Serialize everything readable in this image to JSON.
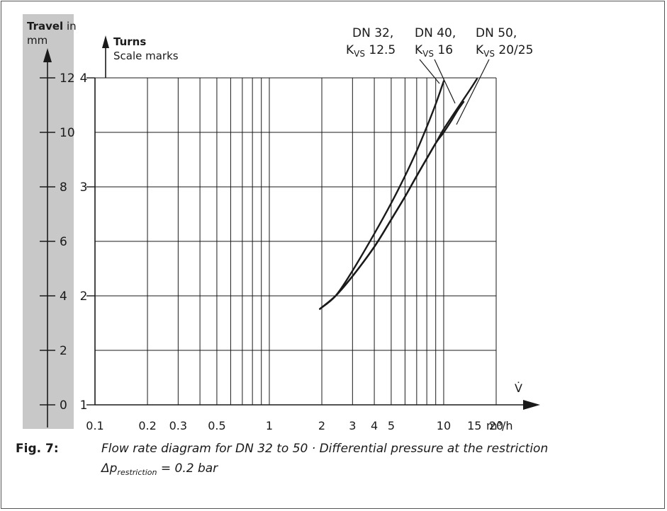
{
  "chart_data": {
    "type": "line",
    "x_scale": "log",
    "x_label": "V̇",
    "x_unit": "m³/h",
    "x_ticks": [
      0.1,
      0.2,
      0.3,
      0.5,
      1,
      2,
      3,
      4,
      5,
      10,
      15,
      20
    ],
    "x_tick_labels": [
      "0.1",
      "0.2",
      "0.3",
      "0.5",
      "1",
      "2",
      "3",
      "4",
      "5",
      "10",
      "15",
      "20"
    ],
    "x_range": [
      0.1,
      20
    ],
    "y_turns": {
      "label_bold": "Turns",
      "label": "Scale marks",
      "ticks": [
        1,
        2,
        3,
        4
      ],
      "tick_labels": [
        "1",
        "2",
        "3",
        "4"
      ],
      "range": [
        1,
        4
      ]
    },
    "y_travel": {
      "label_bold": "Travel",
      "label_rest": " in",
      "unit": "mm",
      "ticks": [
        0,
        2,
        4,
        6,
        8,
        10,
        12
      ],
      "tick_labels": [
        "0",
        "2",
        "4",
        "6",
        "8",
        "10",
        "12"
      ],
      "range": [
        0,
        12
      ]
    },
    "grid": true,
    "series": [
      {
        "name_line1": "DN 32,",
        "name_line2": "12.5",
        "x": [
          1.95,
          2.4,
          3.0,
          4.0,
          5.0,
          6.0,
          7.0,
          8.0,
          9.0,
          10.0
        ],
        "y": [
          1.88,
          2.0,
          2.23,
          2.57,
          2.85,
          3.1,
          3.33,
          3.55,
          3.76,
          3.97
        ]
      },
      {
        "name_line1": "DN 40,",
        "name_line2": "16",
        "x": [
          1.95,
          2.4,
          3.0,
          4.0,
          5.0,
          6.0,
          7.0,
          8.0,
          9.0,
          10.0,
          11.0,
          12.0,
          13.0
        ],
        "y": [
          1.88,
          2.0,
          2.18,
          2.45,
          2.7,
          2.91,
          3.1,
          3.26,
          3.4,
          3.5,
          3.6,
          3.7,
          3.78
        ]
      },
      {
        "name_line1": "DN 50,",
        "name_line2": "20/25",
        "x": [
          1.95,
          2.4,
          3.0,
          4.0,
          5.0,
          6.0,
          7.0,
          8.0,
          9.0,
          10.0,
          12.0,
          14.0,
          15.5
        ],
        "y": [
          1.88,
          2.0,
          2.18,
          2.45,
          2.7,
          2.91,
          3.1,
          3.26,
          3.4,
          3.53,
          3.72,
          3.88,
          3.99
        ]
      }
    ],
    "kvs": "K",
    "kvs_sub": "VS"
  },
  "caption": {
    "fig_no": "Fig. 7:",
    "line1": "Flow rate diagram for DN 32 to 50 · Differential pressure at the restriction",
    "line2_pre": "Δp",
    "line2_sub": "restriction",
    "line2_post": " = 0.2 bar"
  }
}
